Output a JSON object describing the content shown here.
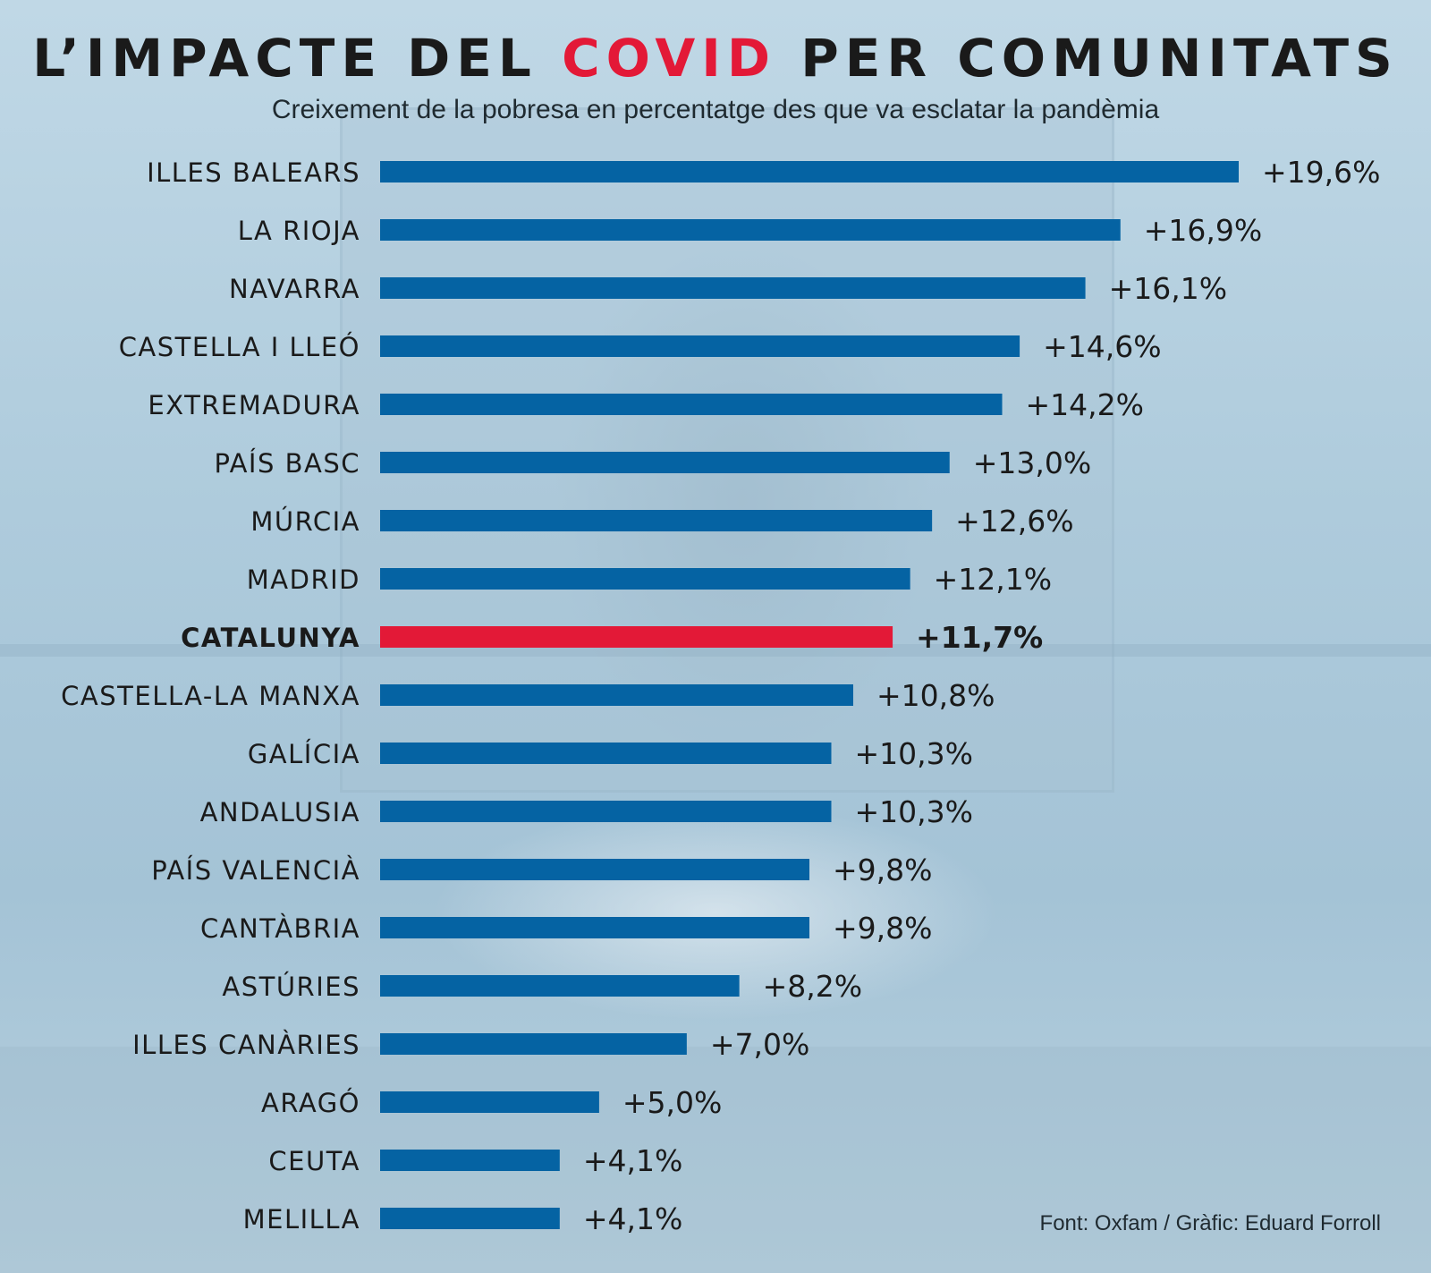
{
  "colors": {
    "bar": "#0563a3",
    "highlight_bar": "#e31937",
    "title_accent": "#e31937",
    "text": "#1a1a1a"
  },
  "header": {
    "title_before": "L’IMPACTE DEL ",
    "title_highlight": "COVID",
    "title_after": " PER COMUNITATS",
    "subtitle": "Creixement de la pobresa en percentatge des que va esclatar la pandèmia"
  },
  "footer": {
    "source": "Font: Oxfam / Gràfic: Eduard Forroll"
  },
  "chart_data": {
    "type": "bar",
    "orientation": "horizontal",
    "title": "L’IMPACTE DEL COVID PER COMUNITATS",
    "subtitle": "Creixement de la pobresa en percentatge des que va esclatar la pandèmia",
    "categories": [
      "ILLES BALEARS",
      "LA RIOJA",
      "NAVARRA",
      "CASTELLA I LLEÓ",
      "EXTREMADURA",
      "PAÍS BASC",
      "MÚRCIA",
      "MADRID",
      "CATALUNYA",
      "CASTELLA-LA MANXA",
      "GALÍCIA",
      "ANDALUSIA",
      "PAÍS VALENCIÀ",
      "CANTÀBRIA",
      "ASTÚRIES",
      "ILLES CANÀRIES",
      "ARAGÓ",
      "CEUTA",
      "MELILLA"
    ],
    "values": [
      19.6,
      16.9,
      16.1,
      14.6,
      14.2,
      13.0,
      12.6,
      12.1,
      11.7,
      10.8,
      10.3,
      10.3,
      9.8,
      9.8,
      8.2,
      7.0,
      5.0,
      4.1,
      4.1
    ],
    "value_labels": [
      "+19,6%",
      "+16,9%",
      "+16,1%",
      "+14,6%",
      "+14,2%",
      "+13,0%",
      "+12,6%",
      "+12,1%",
      "+11,7%",
      "+10,8%",
      "+10,3%",
      "+10,3%",
      "+9,8%",
      "+9,8%",
      "+8,2%",
      "+7,0%",
      "+5,0%",
      "+4,1%",
      "+4,1%"
    ],
    "highlight": "CATALUNYA",
    "xlim": [
      0,
      19.6
    ],
    "grid": false,
    "legend": "none"
  }
}
